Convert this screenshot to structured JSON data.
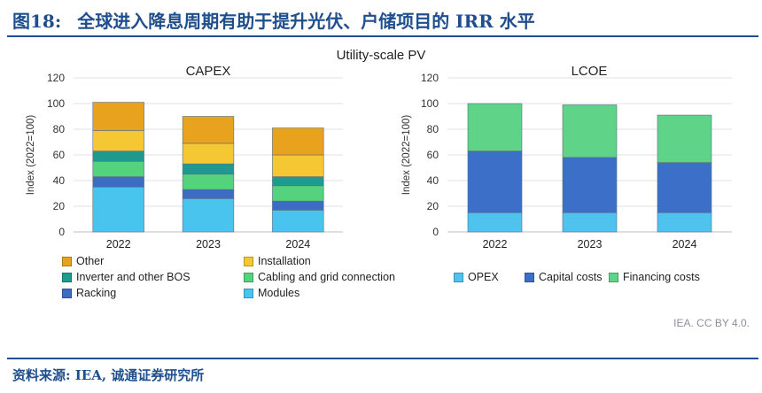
{
  "figure": {
    "label": "图18:",
    "title": "全球进入降息周期有助于提升光伏、户储项目的 IRR 水平",
    "suptitle": "Utility-scale PV",
    "credit": "IEA. CC BY 4.0.",
    "source": "资料来源: IEA, 诚通证券研究所"
  },
  "colors": {
    "Other": "#e8a21e",
    "Installation": "#f5c833",
    "Inverter and other BOS": "#1f9a8f",
    "Cabling and grid connection": "#55d27e",
    "Racking": "#3d6cc4",
    "Modules": "#49c4ef",
    "OPEX": "#4fc3ee",
    "Capital costs": "#3b6fc8",
    "Financing costs": "#5fd488"
  },
  "chart_data": [
    {
      "type": "bar",
      "stacked": true,
      "title": "CAPEX",
      "ylabel": "Index (2022=100)",
      "ylim": [
        0,
        120
      ],
      "yticks": [
        0,
        20,
        40,
        60,
        80,
        100,
        120
      ],
      "categories": [
        "2022",
        "2023",
        "2024"
      ],
      "grid": true,
      "legend_position": "bottom",
      "series": [
        {
          "name": "Modules",
          "values": [
            35,
            26,
            17
          ]
        },
        {
          "name": "Racking",
          "values": [
            8,
            7,
            7
          ]
        },
        {
          "name": "Cabling and grid connection",
          "values": [
            12,
            12,
            12
          ]
        },
        {
          "name": "Inverter and other BOS",
          "values": [
            8,
            8,
            7
          ]
        },
        {
          "name": "Installation",
          "values": [
            16,
            16,
            17
          ]
        },
        {
          "name": "Other",
          "values": [
            22,
            21,
            21
          ]
        }
      ],
      "legend_order": [
        "Other",
        "Installation",
        "Inverter and other BOS",
        "Cabling and grid connection",
        "Racking",
        "Modules"
      ]
    },
    {
      "type": "bar",
      "stacked": true,
      "title": "LCOE",
      "ylabel": "Index (2022=100)",
      "ylim": [
        0,
        120
      ],
      "yticks": [
        0,
        20,
        40,
        60,
        80,
        100,
        120
      ],
      "categories": [
        "2022",
        "2023",
        "2024"
      ],
      "grid": true,
      "legend_position": "bottom",
      "series": [
        {
          "name": "OPEX",
          "values": [
            15,
            15,
            15
          ]
        },
        {
          "name": "Capital costs",
          "values": [
            48,
            43,
            39
          ]
        },
        {
          "name": "Financing costs",
          "values": [
            37,
            41,
            37
          ]
        }
      ],
      "legend_order": [
        "OPEX",
        "Capital costs",
        "Financing costs"
      ]
    }
  ]
}
